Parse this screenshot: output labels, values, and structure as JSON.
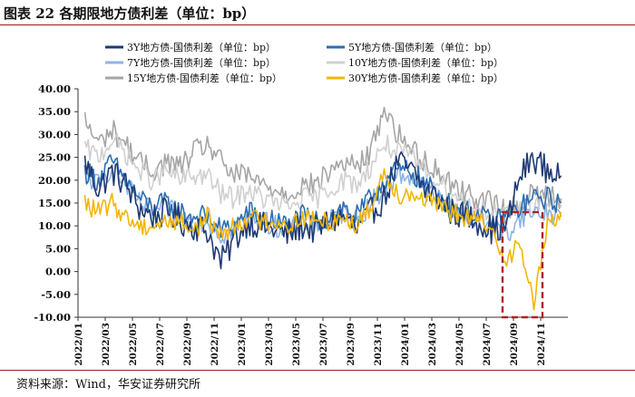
{
  "title": "图表 22 各期限地方债利差（单位：bp）",
  "source": "资料来源：Wind，华安证券研究所",
  "chart_data": {
    "type": "line",
    "title": "图表 22 各期限地方债利差（单位：bp）",
    "xlabel": "",
    "ylabel": "",
    "ylim": [
      -10,
      40
    ],
    "yticks": [
      "40.00",
      "35.00",
      "30.00",
      "25.00",
      "20.00",
      "15.00",
      "10.00",
      "5.00",
      "0.00",
      "-5.00",
      "-10.00"
    ],
    "x_range": [
      "2022-01",
      "2024-12"
    ],
    "xticks": [
      "2022/01",
      "2022/03",
      "2022/05",
      "2022/07",
      "2022/09",
      "2022/11",
      "2023/01",
      "2023/03",
      "2023/05",
      "2023/07",
      "2023/09",
      "2023/11",
      "2024/01",
      "2024/03",
      "2024/05",
      "2024/07",
      "2024/09",
      "2024/11"
    ],
    "highlight_box": {
      "x_start": "2024-08",
      "x_end": "2024-11",
      "y_range": [
        -10,
        13
      ],
      "color": "#b22222",
      "style": "dashed"
    },
    "series": [
      {
        "name": "3Y地方债-国债利差（单位：bp）",
        "color": "#1f3a73",
        "months": [
          "2022-01",
          "2022-02",
          "2022-03",
          "2022-04",
          "2022-05",
          "2022-06",
          "2022-07",
          "2022-08",
          "2022-09",
          "2022-10",
          "2022-11",
          "2022-12",
          "2023-01",
          "2023-02",
          "2023-03",
          "2023-04",
          "2023-05",
          "2023-06",
          "2023-07",
          "2023-08",
          "2023-09",
          "2023-10",
          "2023-11",
          "2023-12",
          "2024-01",
          "2024-02",
          "2024-03",
          "2024-04",
          "2024-05",
          "2024-06",
          "2024-07",
          "2024-08",
          "2024-09",
          "2024-10",
          "2024-11",
          "2024-12"
        ],
        "values": [
          24,
          18,
          22,
          19,
          14,
          12,
          13,
          11,
          10,
          9,
          2,
          7,
          11,
          10,
          9,
          8,
          10,
          9,
          11,
          12,
          9,
          13,
          16,
          24,
          22,
          18,
          16,
          13,
          12,
          11,
          9,
          10,
          21,
          25,
          22,
          21
        ]
      },
      {
        "name": "5Y地方债-国债利差（单位：bp）",
        "color": "#2e6db0",
        "months": [
          "2022-01",
          "2022-02",
          "2022-03",
          "2022-04",
          "2022-05",
          "2022-06",
          "2022-07",
          "2022-08",
          "2022-09",
          "2022-10",
          "2022-11",
          "2022-12",
          "2023-01",
          "2023-02",
          "2023-03",
          "2023-04",
          "2023-05",
          "2023-06",
          "2023-07",
          "2023-08",
          "2023-09",
          "2023-10",
          "2023-11",
          "2023-12",
          "2024-01",
          "2024-02",
          "2024-03",
          "2024-04",
          "2024-05",
          "2024-06",
          "2024-07",
          "2024-08",
          "2024-09",
          "2024-10",
          "2024-11",
          "2024-12"
        ],
        "values": [
          22,
          20,
          24,
          20,
          16,
          14,
          15,
          13,
          12,
          12,
          9,
          10,
          13,
          12,
          11,
          10,
          12,
          11,
          12,
          14,
          12,
          16,
          20,
          22,
          22,
          19,
          17,
          14,
          13,
          12,
          11,
          12,
          14,
          16,
          16,
          15
        ]
      },
      {
        "name": "7Y地方债-国债利差（单位：bp）",
        "color": "#8db4e2",
        "months": [
          "2022-01",
          "2022-02",
          "2022-03",
          "2022-04",
          "2022-05",
          "2022-06",
          "2022-07",
          "2022-08",
          "2022-09",
          "2022-10",
          "2022-11",
          "2022-12",
          "2023-01",
          "2023-02",
          "2023-03",
          "2023-04",
          "2023-05",
          "2023-06",
          "2023-07",
          "2023-08",
          "2023-09",
          "2023-10",
          "2023-11",
          "2023-12",
          "2024-01",
          "2024-02",
          "2024-03",
          "2024-04",
          "2024-05",
          "2024-06",
          "2024-07",
          "2024-08",
          "2024-09",
          "2024-10",
          "2024-11",
          "2024-12"
        ],
        "values": [
          21,
          19,
          23,
          19,
          15,
          13,
          14,
          12,
          11,
          11,
          8,
          9,
          12,
          11,
          10,
          9,
          11,
          10,
          11,
          13,
          11,
          15,
          18,
          21,
          21,
          18,
          16,
          13,
          12,
          11,
          10,
          8,
          12,
          13,
          13,
          12
        ]
      },
      {
        "name": "10Y地方债-国债利差（单位：bp）",
        "color": "#d0d0d0",
        "months": [
          "2022-01",
          "2022-02",
          "2022-03",
          "2022-04",
          "2022-05",
          "2022-06",
          "2022-07",
          "2022-08",
          "2022-09",
          "2022-10",
          "2022-11",
          "2022-12",
          "2023-01",
          "2023-02",
          "2023-03",
          "2023-04",
          "2023-05",
          "2023-06",
          "2023-07",
          "2023-08",
          "2023-09",
          "2023-10",
          "2023-11",
          "2023-12",
          "2024-01",
          "2024-02",
          "2024-03",
          "2024-04",
          "2024-05",
          "2024-06",
          "2024-07",
          "2024-08",
          "2024-09",
          "2024-10",
          "2024-11",
          "2024-12"
        ],
        "values": [
          27,
          25,
          29,
          26,
          22,
          20,
          22,
          20,
          21,
          21,
          17,
          16,
          18,
          16,
          15,
          14,
          16,
          16,
          18,
          20,
          19,
          23,
          28,
          26,
          25,
          22,
          20,
          17,
          15,
          14,
          13,
          12,
          14,
          15,
          15,
          14
        ]
      },
      {
        "name": "15Y地方债-国债利差（单位：bp）",
        "color": "#a6a6a6",
        "months": [
          "2022-01",
          "2022-02",
          "2022-03",
          "2022-04",
          "2022-05",
          "2022-06",
          "2022-07",
          "2022-08",
          "2022-09",
          "2022-10",
          "2022-11",
          "2022-12",
          "2023-01",
          "2023-02",
          "2023-03",
          "2023-04",
          "2023-05",
          "2023-06",
          "2023-07",
          "2023-08",
          "2023-09",
          "2023-10",
          "2023-11",
          "2023-12",
          "2024-01",
          "2024-02",
          "2024-03",
          "2024-04",
          "2024-05",
          "2024-06",
          "2024-07",
          "2024-08",
          "2024-09",
          "2024-10",
          "2024-11",
          "2024-12"
        ],
        "values": [
          33,
          28,
          31,
          28,
          24,
          22,
          24,
          23,
          26,
          28,
          24,
          21,
          21,
          19,
          18,
          17,
          19,
          19,
          22,
          24,
          23,
          26,
          36,
          30,
          27,
          24,
          22,
          19,
          17,
          16,
          15,
          13,
          15,
          17,
          17,
          16
        ]
      },
      {
        "name": "30Y地方债-国债利差（单位：bp）",
        "color": "#f2b705",
        "months": [
          "2022-01",
          "2022-02",
          "2022-03",
          "2022-04",
          "2022-05",
          "2022-06",
          "2022-07",
          "2022-08",
          "2022-09",
          "2022-10",
          "2022-11",
          "2022-12",
          "2023-01",
          "2023-02",
          "2023-03",
          "2023-04",
          "2023-05",
          "2023-06",
          "2023-07",
          "2023-08",
          "2023-09",
          "2023-10",
          "2023-11",
          "2023-12",
          "2024-01",
          "2024-02",
          "2024-03",
          "2024-04",
          "2024-05",
          "2024-06",
          "2024-07",
          "2024-08",
          "2024-09",
          "2024-10",
          "2024-11",
          "2024-12"
        ],
        "values": [
          15,
          13,
          15,
          12,
          10,
          10,
          11,
          11,
          9,
          12,
          8,
          10,
          12,
          11,
          11,
          10,
          12,
          11,
          11,
          12,
          10,
          14,
          22,
          17,
          17,
          16,
          14,
          13,
          12,
          11,
          8,
          3,
          6,
          -7,
          10,
          13
        ]
      }
    ]
  }
}
